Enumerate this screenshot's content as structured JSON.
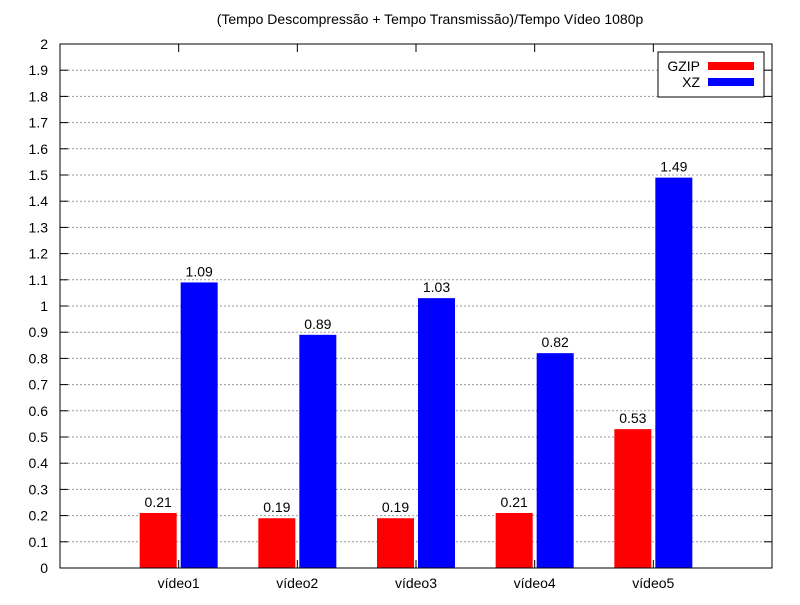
{
  "chart_data": {
    "type": "bar",
    "title": "(Tempo Descompressão + Tempo Transmissão)/Tempo Vídeo 1080p",
    "xlabel": "",
    "ylabel": "",
    "categories": [
      "vídeo1",
      "vídeo2",
      "vídeo3",
      "vídeo4",
      "vídeo5"
    ],
    "series": [
      {
        "name": "GZIP",
        "color": "#ff0000",
        "values": [
          0.21,
          0.19,
          0.19,
          0.21,
          0.53
        ],
        "labels": [
          "0.21",
          "0.19",
          "0.19",
          "0.21",
          "0.53"
        ]
      },
      {
        "name": "XZ",
        "color": "#0000ff",
        "values": [
          1.09,
          0.89,
          1.03,
          0.82,
          1.49
        ],
        "labels": [
          "1.09",
          "0.89",
          "1.03",
          "0.82",
          "1.49"
        ]
      }
    ],
    "ylim": [
      0,
      2
    ],
    "yticks": [
      "0",
      "0.1",
      "0.2",
      "0.3",
      "0.4",
      "0.5",
      "0.6",
      "0.7",
      "0.8",
      "0.9",
      "1",
      "1.1",
      "1.2",
      "1.3",
      "1.4",
      "1.5",
      "1.6",
      "1.7",
      "1.8",
      "1.9",
      "2"
    ],
    "grid": true,
    "legend_position": "top-right"
  }
}
